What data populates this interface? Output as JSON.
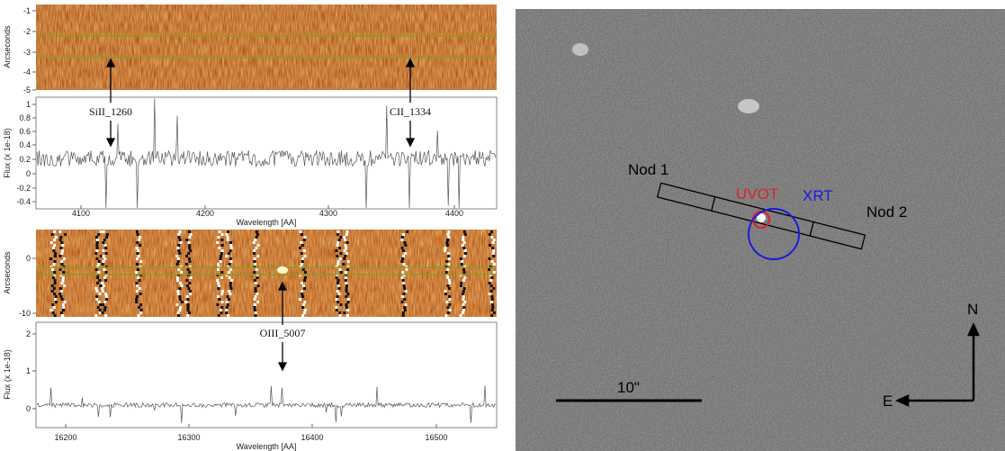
{
  "spectrum_top": {
    "ylabel_2d": "Arcseconds",
    "yticks_2d": [
      "-1",
      "-2",
      "-3",
      "-4",
      "-5"
    ],
    "ylabel": "Flux (x 1e-18)",
    "yticks": [
      "1",
      "0.8",
      "0.6",
      "0.4",
      "0.2",
      "0",
      "-0.2",
      "-0.4"
    ],
    "xticks": [
      "4100",
      "4200",
      "4300",
      "4400"
    ],
    "xlabel": "Wavelength [AA]",
    "lines": [
      "SiII_1260",
      "CII_1334"
    ]
  },
  "spectrum_bottom": {
    "ylabel_2d": "Arcseconds",
    "yticks_2d": [
      "0",
      "-10"
    ],
    "ylabel": "Flux (x 1e-18)",
    "yticks": [
      "2",
      "1",
      "0"
    ],
    "xticks": [
      "16200",
      "16300",
      "16400",
      "16500"
    ],
    "xlabel": "Wavelength [AA]",
    "lines": [
      "OIII_5007"
    ]
  },
  "image": {
    "nod1": "Nod 1",
    "nod2": "Nod 2",
    "uvot": "UVOT",
    "xrt": "XRT",
    "scale": "10\"",
    "north": "N",
    "east": "E"
  }
}
